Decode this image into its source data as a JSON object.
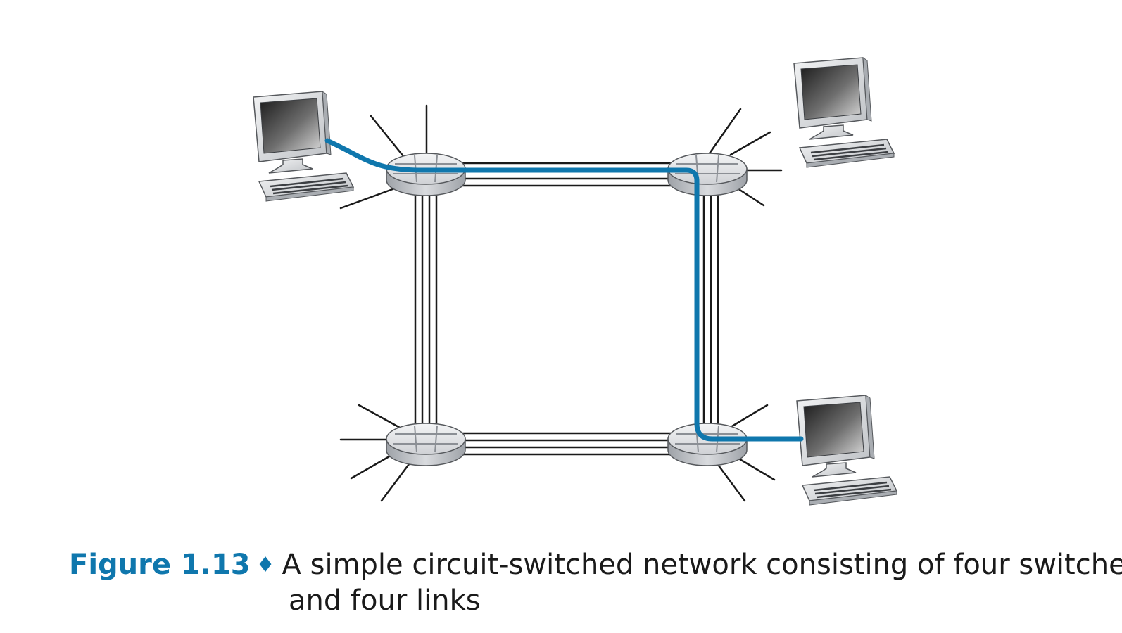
{
  "caption": {
    "label": "Figure 1.13",
    "separator": "♦",
    "text_line1": "A simple circuit-switched network consisting of four switches",
    "text_line2": "and four links"
  },
  "colors": {
    "circuit": "#0f77ad",
    "link": "#1a1a1a",
    "switch_top": "#e8e9eb",
    "switch_side": "#b9bcc1",
    "monitor_body": "#e4e5e7",
    "screen_dark": "#2b2b2b"
  },
  "nodes": {
    "switches": [
      "switch-top-left",
      "switch-top-right",
      "switch-bottom-left",
      "switch-bottom-right"
    ],
    "hosts": [
      "host-top-left",
      "host-top-right",
      "host-bottom-right"
    ],
    "links": [
      "link-top",
      "link-right",
      "link-bottom",
      "link-left"
    ]
  }
}
